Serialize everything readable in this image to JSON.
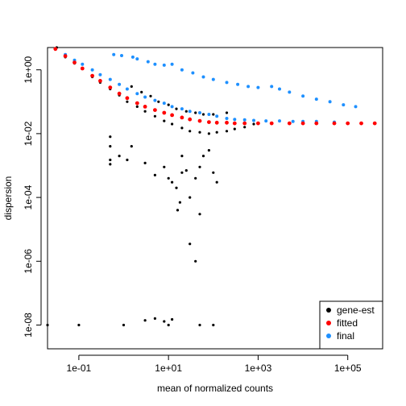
{
  "chart_data": {
    "type": "scatter",
    "title": "",
    "xlabel": "mean of normalized counts",
    "ylabel": "dispersion",
    "x_scale": "log10",
    "y_scale": "log10",
    "xlim": [
      0.02,
      600000
    ],
    "ylim": [
      1.8e-09,
      5
    ],
    "x_tick_labels": [
      "1e-01",
      "1e+01",
      "1e+03",
      "1e+05"
    ],
    "x_tick_values": [
      0.1,
      10,
      1000,
      100000
    ],
    "y_tick_labels": [
      "1e-08",
      "1e-06",
      "1e-04",
      "1e-02",
      "1e+00"
    ],
    "y_tick_values": [
      1e-08,
      1e-06,
      0.0001,
      0.01,
      1
    ],
    "legend_position": "bottom-right",
    "series": [
      {
        "name": "gene-est",
        "color": "#000000",
        "points": [
          [
            0.032,
            5.0
          ],
          [
            0.05,
            2.5
          ],
          [
            0.08,
            1.6
          ],
          [
            0.12,
            1.1
          ],
          [
            0.2,
            0.6
          ],
          [
            0.3,
            0.4
          ],
          [
            0.5,
            0.25
          ],
          [
            0.8,
            0.16
          ],
          [
            1.2,
            0.1
          ],
          [
            2,
            0.07
          ],
          [
            3,
            0.05
          ],
          [
            5,
            0.035
          ],
          [
            8,
            0.025
          ],
          [
            12,
            0.02
          ],
          [
            20,
            0.015
          ],
          [
            30,
            0.012
          ],
          [
            50,
            0.011
          ],
          [
            80,
            0.01
          ],
          [
            120,
            0.011
          ],
          [
            200,
            0.012
          ],
          [
            300,
            0.014
          ],
          [
            500,
            0.016
          ],
          [
            800,
            0.02
          ],
          [
            1.5,
            0.3
          ],
          [
            2.5,
            0.2
          ],
          [
            4,
            0.15
          ],
          [
            6,
            0.1
          ],
          [
            10,
            0.08
          ],
          [
            15,
            0.06
          ],
          [
            25,
            0.05
          ],
          [
            40,
            0.045
          ],
          [
            60,
            0.04
          ],
          [
            100,
            0.04
          ],
          [
            200,
            0.045
          ],
          [
            0.5,
            0.008
          ],
          [
            0.5,
            0.004
          ],
          [
            0.5,
            0.0015
          ],
          [
            0.5,
            0.0011
          ],
          [
            0.8,
            0.002
          ],
          [
            1.2,
            0.0015
          ],
          [
            1.5,
            0.004
          ],
          [
            3,
            0.0012
          ],
          [
            5,
            0.0005
          ],
          [
            8,
            0.0009
          ],
          [
            10,
            0.0004
          ],
          [
            12,
            0.0003
          ],
          [
            15,
            0.0002
          ],
          [
            20,
            0.0006
          ],
          [
            25,
            0.0007
          ],
          [
            30,
            0.0001
          ],
          [
            40,
            0.0004
          ],
          [
            50,
            0.0009
          ],
          [
            60,
            0.002
          ],
          [
            80,
            0.003
          ],
          [
            100,
            0.0006
          ],
          [
            120,
            0.0003
          ],
          [
            16,
            4e-05
          ],
          [
            18,
            7e-05
          ],
          [
            30,
            3.5e-06
          ],
          [
            40,
            1e-06
          ],
          [
            50,
            3e-05
          ],
          [
            20,
            0.002
          ],
          [
            0.02,
            1e-08
          ],
          [
            0.1,
            1e-08
          ],
          [
            1,
            1e-08
          ],
          [
            10,
            1e-08
          ],
          [
            50,
            1e-08
          ],
          [
            100,
            1e-08
          ],
          [
            3,
            1.4e-08
          ],
          [
            5,
            1.6e-08
          ],
          [
            8,
            1.3e-08
          ],
          [
            12,
            1.5e-08
          ]
        ]
      },
      {
        "name": "fitted",
        "color": "#ff0000",
        "points": [
          [
            0.03,
            4.5
          ],
          [
            0.05,
            2.7
          ],
          [
            0.08,
            1.7
          ],
          [
            0.12,
            1.1
          ],
          [
            0.2,
            0.65
          ],
          [
            0.3,
            0.45
          ],
          [
            0.5,
            0.28
          ],
          [
            0.8,
            0.18
          ],
          [
            1.2,
            0.13
          ],
          [
            2,
            0.09
          ],
          [
            3,
            0.07
          ],
          [
            5,
            0.055
          ],
          [
            8,
            0.045
          ],
          [
            12,
            0.038
          ],
          [
            20,
            0.032
          ],
          [
            30,
            0.028
          ],
          [
            50,
            0.025
          ],
          [
            80,
            0.023
          ],
          [
            120,
            0.022
          ],
          [
            200,
            0.022
          ],
          [
            300,
            0.021
          ],
          [
            500,
            0.021
          ],
          [
            1000,
            0.021
          ],
          [
            2000,
            0.021
          ],
          [
            5000,
            0.021
          ],
          [
            10000,
            0.021
          ],
          [
            20000,
            0.021
          ],
          [
            50000,
            0.021
          ],
          [
            100000,
            0.021
          ],
          [
            200000,
            0.021
          ],
          [
            400000,
            0.021
          ]
        ]
      },
      {
        "name": "final",
        "color": "#1e90ff",
        "points": [
          [
            0.05,
            3.0
          ],
          [
            0.08,
            2.0
          ],
          [
            0.12,
            1.5
          ],
          [
            0.2,
            1.0
          ],
          [
            0.3,
            0.7
          ],
          [
            0.5,
            0.5
          ],
          [
            0.8,
            0.35
          ],
          [
            1.2,
            0.25
          ],
          [
            2,
            0.18
          ],
          [
            3,
            0.14
          ],
          [
            5,
            0.11
          ],
          [
            8,
            0.09
          ],
          [
            12,
            0.07
          ],
          [
            20,
            0.06
          ],
          [
            30,
            0.05
          ],
          [
            50,
            0.045
          ],
          [
            80,
            0.04
          ],
          [
            120,
            0.035
          ],
          [
            200,
            0.03
          ],
          [
            300,
            0.028
          ],
          [
            500,
            0.027
          ],
          [
            800,
            0.026
          ],
          [
            1500,
            0.025
          ],
          [
            3000,
            0.025
          ],
          [
            6000,
            0.024
          ],
          [
            10000,
            0.024
          ],
          [
            20000,
            0.024
          ],
          [
            50000,
            0.023
          ],
          [
            0.6,
            3.0
          ],
          [
            0.9,
            2.8
          ],
          [
            1.6,
            2.5
          ],
          [
            2,
            2.2
          ],
          [
            3.5,
            1.8
          ],
          [
            5,
            1.5
          ],
          [
            8,
            1.4
          ],
          [
            12,
            1.5
          ],
          [
            20,
            1.0
          ],
          [
            35,
            0.8
          ],
          [
            60,
            0.6
          ],
          [
            100,
            0.5
          ],
          [
            200,
            0.4
          ],
          [
            350,
            0.35
          ],
          [
            600,
            0.3
          ],
          [
            1000,
            0.28
          ],
          [
            2000,
            0.3
          ],
          [
            3000,
            0.25
          ],
          [
            5000,
            0.2
          ],
          [
            10000,
            0.15
          ],
          [
            20000,
            0.12
          ],
          [
            40000,
            0.1
          ],
          [
            80000,
            0.08
          ],
          [
            150000,
            0.07
          ]
        ]
      }
    ]
  }
}
